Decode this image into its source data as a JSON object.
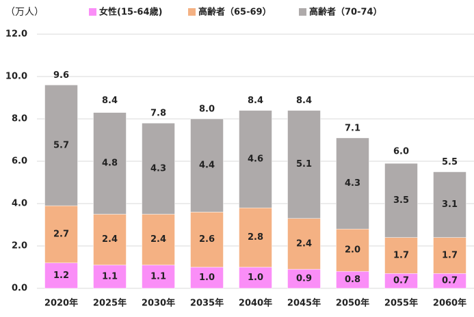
{
  "chart_data": {
    "type": "stacked_bar",
    "y_label": "（万人）",
    "categories": [
      "2020年",
      "2025年",
      "2030年",
      "2035年",
      "2040年",
      "2045年",
      "2050年",
      "2055年",
      "2060年"
    ],
    "series": [
      {
        "name": "女性(15-64歳)",
        "color": "#fa8ef7",
        "values": [
          1.2,
          1.1,
          1.1,
          1,
          1,
          0.9,
          0.8,
          0.7,
          0.7
        ],
        "value_labels": [
          "1.2",
          "1.1",
          "1.1",
          "1.0",
          "1.0",
          "0.9",
          "0.8",
          "0.7",
          "0.7"
        ]
      },
      {
        "name": "高齢者（65-69）",
        "color": "#f4b183",
        "values": [
          2.7,
          2.4,
          2.4,
          2.6,
          2.8,
          2.4,
          2,
          1.7,
          1.7
        ],
        "value_labels": [
          "2.7",
          "2.4",
          "2.4",
          "2.6",
          "2.8",
          "2.4",
          "2.0",
          "1.7",
          "1.7"
        ]
      },
      {
        "name": "高齢者（70-74）",
        "color": "#aeaaaa",
        "values": [
          5.7,
          4.8,
          4.3,
          4.4,
          4.6,
          5.1,
          4.3,
          3.5,
          3.1
        ],
        "value_labels": [
          "5.7",
          "4.8",
          "4.3",
          "4.4",
          "4.6",
          "5.1",
          "4.3",
          "3.5",
          "3.1"
        ]
      }
    ],
    "totals": [
      9.6,
      8.4,
      7.8,
      8,
      8.4,
      8.4,
      7.1,
      6,
      5.5
    ],
    "total_labels": [
      "9.6",
      "8.4",
      "7.8",
      "8.0",
      "8.4",
      "8.4",
      "7.1",
      "6.0",
      "5.5"
    ],
    "ylim": [
      0,
      12
    ],
    "yticks": [
      {
        "value": 0,
        "label": "0.0"
      },
      {
        "value": 2,
        "label": "2.0"
      },
      {
        "value": 4,
        "label": "4.0"
      },
      {
        "value": 6,
        "label": "6.0"
      },
      {
        "value": 8,
        "label": "8.0"
      },
      {
        "value": 10,
        "label": "10.0"
      },
      {
        "value": 12,
        "label": "12.0"
      }
    ],
    "grid": true
  }
}
